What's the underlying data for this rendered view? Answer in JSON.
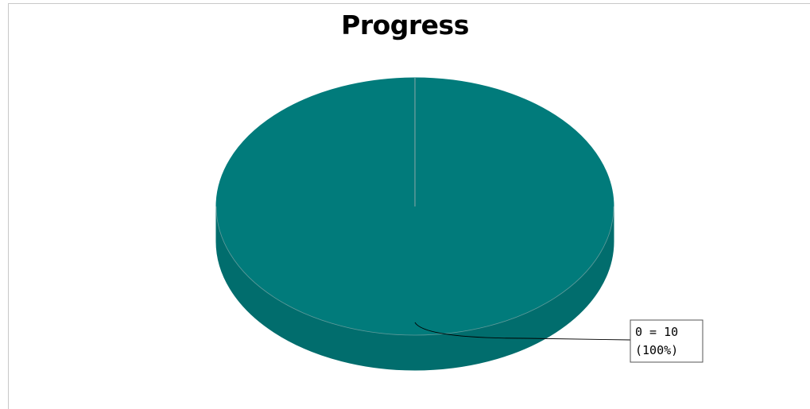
{
  "chart_data": {
    "type": "pie",
    "title": "Progress",
    "slices": [
      {
        "label": "0",
        "value": 10,
        "percent": "100%",
        "label_line1": "0 = 10",
        "label_line2": "(100%)"
      }
    ],
    "colors": {
      "slice": "#017b7b",
      "slice_side": "#016d6d",
      "seam": "#8aa7a7"
    },
    "style": "3d"
  }
}
